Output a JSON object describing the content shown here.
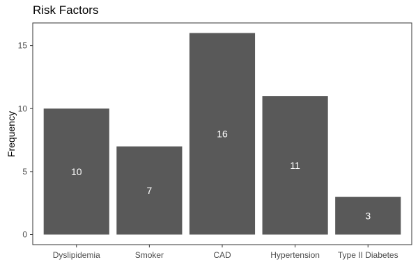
{
  "chart_data": {
    "type": "bar",
    "title": "Risk Factors",
    "xlabel": "",
    "ylabel": "Frequency",
    "categories": [
      "Dyslipidemia",
      "Smoker",
      "CAD",
      "Hypertension",
      "Type II Diabetes"
    ],
    "values": [
      10,
      7,
      16,
      11,
      3
    ],
    "data_labels": [
      "10",
      "7",
      "16",
      "11",
      "3"
    ],
    "yticks": [
      0,
      5,
      10,
      15
    ],
    "ylim": [
      -0.8,
      16.8
    ],
    "grid": false,
    "legend": "none",
    "bar_color": "#595959",
    "label_color": "#ffffff",
    "label_position": "bar-middle"
  }
}
